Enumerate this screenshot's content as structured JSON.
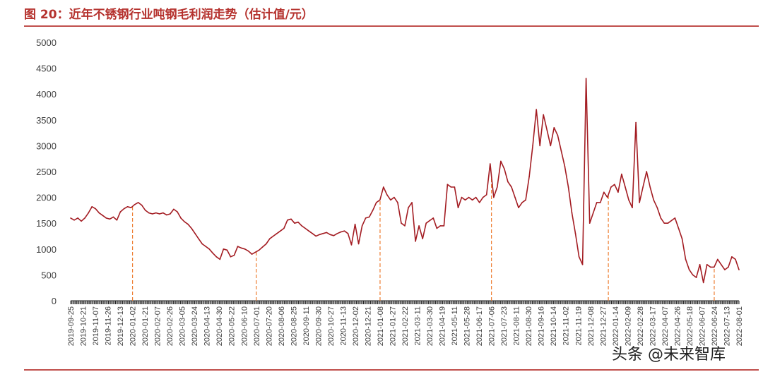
{
  "header": {
    "title": "图 20：近年不锈钢行业吨钢毛利润走势（估计值/元）"
  },
  "watermark": {
    "text": "头条 @未来智库"
  },
  "colors": {
    "title": "#b5322e",
    "rule": "#c0504d",
    "line": "#a31c22",
    "marker": "#ed7d31"
  },
  "chart_data": {
    "type": "line",
    "title": "",
    "xlabel": "",
    "ylabel": "",
    "ylim": [
      0,
      5000
    ],
    "yticks": [
      0,
      500,
      1000,
      1500,
      2000,
      2500,
      3000,
      3500,
      4000,
      4500,
      5000
    ],
    "grid": false,
    "legend": "none",
    "x_tick_labels": [
      "2019-09-25",
      "2019-10-21",
      "2019-11-07",
      "2019-11-26",
      "2019-12-13",
      "2020-01-02",
      "2020-01-21",
      "2020-02-07",
      "2020-02-26",
      "2020-03-05",
      "2020-03-24",
      "2020-04-13",
      "2020-04-30",
      "2020-05-22",
      "2020-06-10",
      "2020-07-01",
      "2020-07-20",
      "2020-08-06",
      "2020-08-25",
      "2020-09-11",
      "2020-09-30",
      "2020-10-27",
      "2020-11-13",
      "2020-12-02",
      "2020-12-21",
      "2021-01-08",
      "2021-01-27",
      "2021-02-22",
      "2021-03-11",
      "2021-03-30",
      "2021-04-19",
      "2021-05-11",
      "2021-05-28",
      "2021-06-17",
      "2021-07-06",
      "2021-07-23",
      "2021-08-11",
      "2021-08-30",
      "2021-09-16",
      "2021-10-14",
      "2021-11-02",
      "2021-11-19",
      "2021-12-08",
      "2021-12-27",
      "2022-01-14",
      "2022-02-09",
      "2022-02-28",
      "2022-03-17",
      "2022-04-07",
      "2022-04-26",
      "2022-05-18",
      "2022-06-07",
      "2022-06-24",
      "2022-07-13",
      "2022-08-01"
    ],
    "series": [
      {
        "values": [
          1600,
          1560,
          1600,
          1540,
          1600,
          1700,
          1820,
          1780,
          1700,
          1650,
          1600,
          1580,
          1620,
          1560,
          1720,
          1780,
          1820,
          1800,
          1860,
          1900,
          1850,
          1750,
          1700,
          1680,
          1700,
          1680,
          1700,
          1660,
          1680,
          1770,
          1720,
          1600,
          1530,
          1480,
          1400,
          1300,
          1200,
          1100,
          1050,
          1000,
          920,
          850,
          800,
          1000,
          980,
          850,
          880,
          1050,
          1020,
          1000,
          960,
          900,
          940,
          980,
          1040,
          1100,
          1200,
          1250,
          1300,
          1350,
          1400,
          1560,
          1580,
          1500,
          1520,
          1450,
          1400,
          1350,
          1300,
          1250,
          1280,
          1300,
          1320,
          1280,
          1260,
          1300,
          1330,
          1350,
          1300,
          1080,
          1480,
          1100,
          1450,
          1600,
          1620,
          1750,
          1900,
          1950,
          2200,
          2050,
          1950,
          2000,
          1900,
          1500,
          1450,
          1800,
          1900,
          1150,
          1450,
          1200,
          1500,
          1550,
          1600,
          1400,
          1450,
          1450,
          2250,
          2200,
          2200,
          1800,
          2000,
          1950,
          2000,
          1950,
          2000,
          1900,
          2000,
          2050,
          2650,
          2000,
          2200,
          2700,
          2550,
          2300,
          2200,
          2000,
          1800,
          1900,
          1950,
          2400,
          3000,
          3700,
          3000,
          3600,
          3300,
          3000,
          3350,
          3200,
          2900,
          2600,
          2200,
          1700,
          1300,
          850,
          700,
          4300,
          1500,
          1700,
          1900,
          1900,
          2100,
          2000,
          2200,
          2250,
          2100,
          2450,
          2200,
          1950,
          1800,
          3450,
          1900,
          2200,
          2500,
          2200,
          1950,
          1800,
          1600,
          1500,
          1500,
          1550,
          1600,
          1400,
          1200,
          800,
          600,
          500,
          450,
          700,
          350,
          700,
          650,
          650,
          800,
          700,
          600,
          650,
          850,
          800,
          600
        ]
      }
    ],
    "vertical_markers": [
      "2020-01-02",
      "2020-07-01",
      "2021-01-08",
      "2021-07-06",
      "2022-01-04",
      "2022-06-24"
    ]
  }
}
